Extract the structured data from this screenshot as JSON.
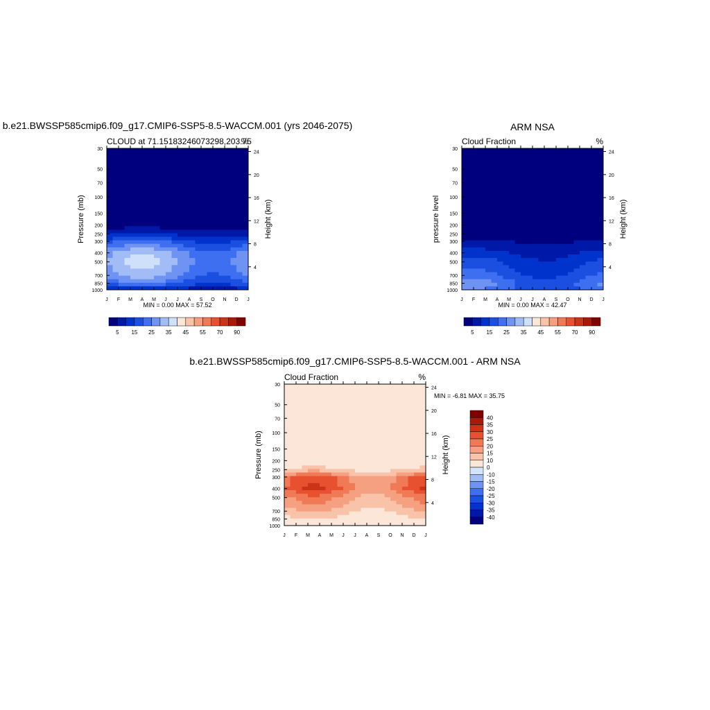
{
  "chart_data": [
    {
      "type": "heatmap",
      "title": "b.e21.BWSSP585cmip6.f09_g17.CMIP6-SSP5-8.5-WACCM.001 (yrs 2046-2075)",
      "subtitle_left": "CLOUD at 71.15183246073298,203.75",
      "subtitle_right": "%",
      "ylabel": "Pressure (mb)",
      "ylabel_right": "Height (km)",
      "x_ticks": [
        "J",
        "F",
        "M",
        "A",
        "M",
        "J",
        "J",
        "A",
        "S",
        "O",
        "N",
        "D",
        "J"
      ],
      "y_ticks": [
        30,
        50,
        70,
        100,
        150,
        200,
        250,
        300,
        400,
        500,
        700,
        850,
        1000
      ],
      "y_ticks_right": [
        24,
        20,
        16,
        12,
        8,
        4
      ],
      "stats": "MIN =   0.00 MAX =  57.52",
      "min": 0.0,
      "max": 57.52,
      "colorbar_labels": [
        "5",
        "15",
        "25",
        "35",
        "45",
        "55",
        "70",
        "90"
      ],
      "profile": {
        "pressure": [
          30,
          150,
          200,
          250,
          300,
          400,
          500,
          700,
          850,
          1000
        ],
        "values": [
          0,
          0,
          2,
          9,
          18,
          28,
          30,
          26,
          20,
          8
        ]
      }
    },
    {
      "type": "heatmap",
      "title": "ARM NSA",
      "subtitle_left": "Cloud Fraction",
      "subtitle_right": "%",
      "ylabel": "pressure level",
      "ylabel_right": "Height (km)",
      "x_ticks": [
        "J",
        "F",
        "M",
        "A",
        "M",
        "J",
        "J",
        "A",
        "S",
        "O",
        "N",
        "D",
        "J"
      ],
      "y_ticks": [
        30,
        50,
        70,
        100,
        150,
        200,
        250,
        300,
        400,
        500,
        700,
        850,
        1000
      ],
      "y_ticks_right": [
        24,
        20,
        16,
        12,
        8,
        4
      ],
      "stats": "MIN =   0.00 MAX =  42.47",
      "min": 0.0,
      "max": 42.47,
      "colorbar_labels": [
        "5",
        "15",
        "25",
        "35",
        "45",
        "55",
        "70",
        "90"
      ],
      "profile": {
        "pressure": [
          30,
          200,
          250,
          300,
          400,
          500,
          700,
          850,
          1000
        ],
        "values": [
          0,
          0,
          2,
          5,
          10,
          14,
          18,
          22,
          20
        ]
      }
    },
    {
      "type": "heatmap",
      "title": "b.e21.BWSSP585cmip6.f09_g17.CMIP6-SSP5-8.5-WACCM.001 - ARM NSA",
      "subtitle_left": "Cloud Fraction",
      "subtitle_right": "%",
      "ylabel": "Pressure (mb)",
      "ylabel_right": "Height (km)",
      "x_ticks": [
        "J",
        "F",
        "M",
        "A",
        "M",
        "J",
        "J",
        "A",
        "S",
        "O",
        "N",
        "D",
        "J"
      ],
      "y_ticks": [
        30,
        50,
        70,
        100,
        150,
        200,
        250,
        300,
        400,
        500,
        700,
        850,
        1000
      ],
      "y_ticks_right": [
        24,
        20,
        16,
        12,
        8,
        4
      ],
      "stats": "MIN =  -6.81 MAX =  35.75",
      "min": -6.81,
      "max": 35.75,
      "colorbar_labels": [
        "40",
        "35",
        "30",
        "25",
        "20",
        "15",
        "10",
        "0",
        "-10",
        "-15",
        "-20",
        "-25",
        "-30",
        "-35",
        "-40"
      ],
      "profile": {
        "pressure": [
          30,
          200,
          250,
          300,
          400,
          500,
          700,
          850,
          1000
        ],
        "values": [
          2,
          3,
          10,
          22,
          24,
          18,
          12,
          8,
          6
        ]
      }
    }
  ],
  "colors": {
    "cloud_scale": [
      "#00007f",
      "#0018a8",
      "#0033cc",
      "#1a4fe0",
      "#3d6ff0",
      "#6e93f2",
      "#a2bcf5",
      "#cfe0fa",
      "#fbe6d8",
      "#f8c3a8",
      "#f5a080",
      "#f07a55",
      "#e8512f",
      "#cc3417",
      "#aa1a0a",
      "#800000"
    ],
    "diff_scale": [
      "#800000",
      "#aa1a0a",
      "#cc3417",
      "#e8512f",
      "#f07a55",
      "#f5a080",
      "#f8c3a8",
      "#fbe6d8",
      "#d4e4fa",
      "#a2bcf5",
      "#6e93f2",
      "#3d6ff0",
      "#1a4fe0",
      "#0033cc",
      "#0018a8",
      "#00007f"
    ]
  }
}
